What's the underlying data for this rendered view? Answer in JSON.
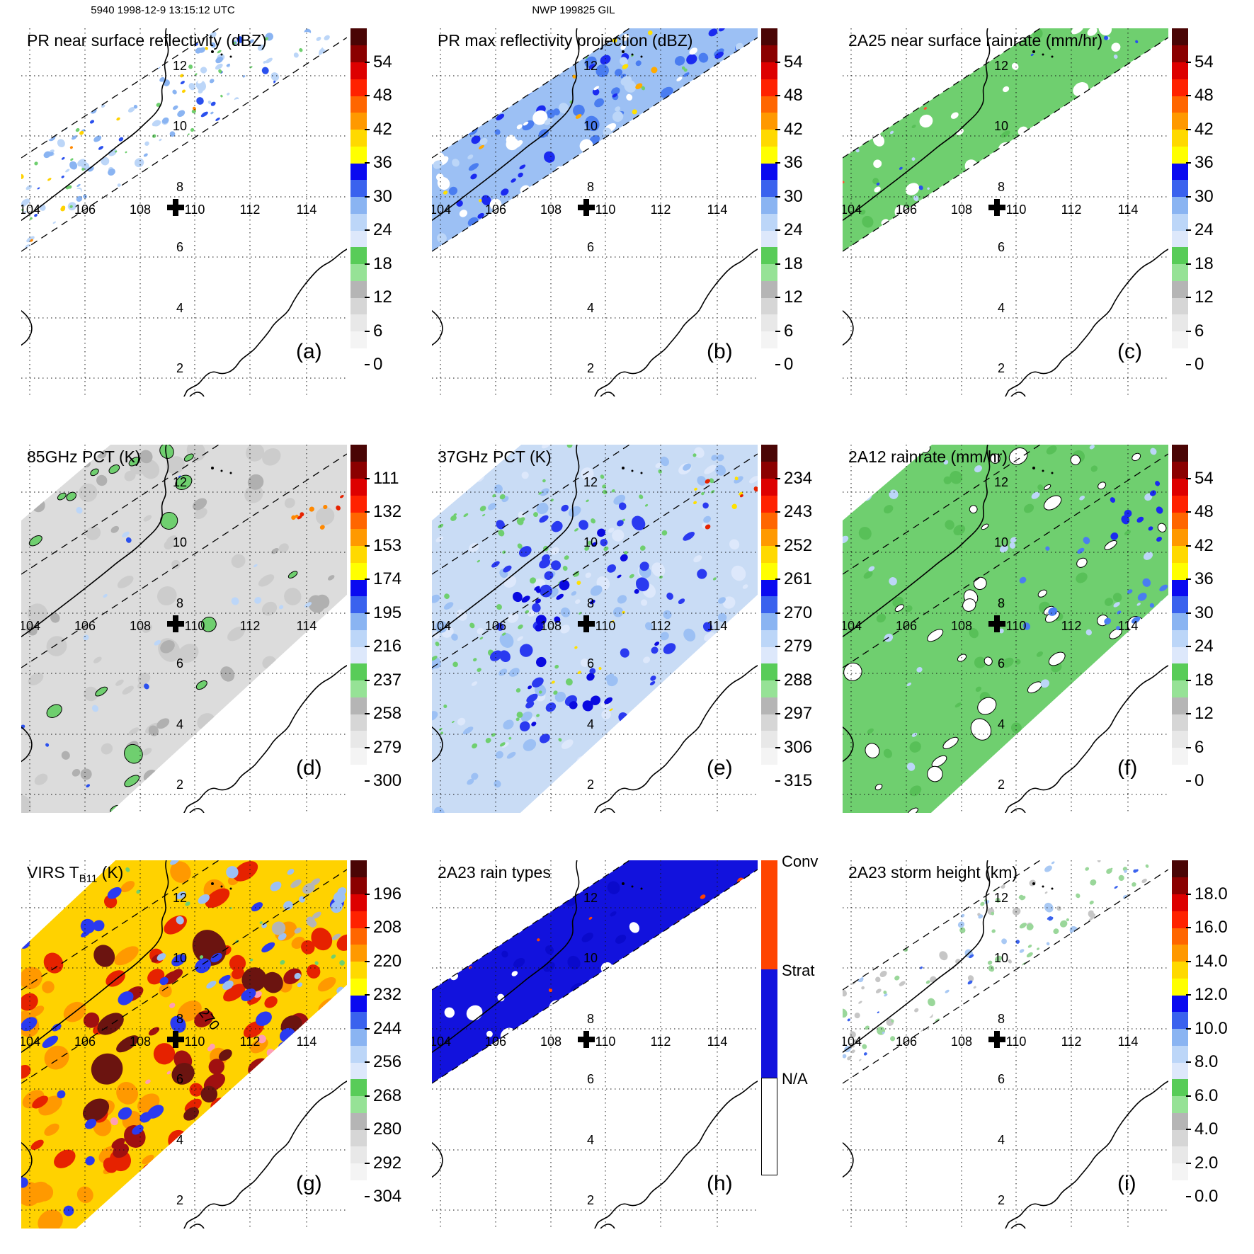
{
  "figure": {
    "header_left": "5940 1998-12-9 13:15:12 UTC",
    "header_right": "NWP 199825 GIL"
  },
  "axes": {
    "lon_ticks": [
      "104",
      "106",
      "108",
      "110",
      "112",
      "114"
    ],
    "lat_ticks": [
      "12",
      "10",
      "8",
      "6",
      "4",
      "2"
    ]
  },
  "marker": {
    "symbol": "plus",
    "lon": 109.4,
    "lat": 7.7
  },
  "colorbar_palette": [
    "#ffffff",
    "#f4f4f4",
    "#e8e8e8",
    "#d6d6d6",
    "#b5b5b5",
    "#96e296",
    "#58cc58",
    "#dde8fb",
    "#bcd6f8",
    "#8ab4f2",
    "#3a62ee",
    "#0a0af0",
    "#ffff00",
    "#ffd900",
    "#ff9900",
    "#ff6600",
    "#ff2200",
    "#dd0000",
    "#8b0000",
    "#4a0505"
  ],
  "raintype_colors": {
    "conv": "#ff4400",
    "strat": "#1212dd",
    "na": "#ffffff"
  },
  "panels": [
    {
      "letter": "(a)",
      "title": "PR near surface reflectivity (dBZ)",
      "swath": "pr",
      "cb": "spectral",
      "seed": 11,
      "cb_ticks": [
        "0",
        "6",
        "12",
        "18",
        "24",
        "30",
        "36",
        "42",
        "48",
        "54"
      ],
      "viz": {
        "base": null,
        "blobs": [
          {
            "c": "#bcd6f8",
            "n": 120,
            "r": [
              2,
              7
            ]
          },
          {
            "c": "#8ab4f2",
            "n": 90,
            "r": [
              2,
              6
            ]
          },
          {
            "c": "#2a50ee",
            "n": 70,
            "r": [
              2,
              6
            ]
          },
          {
            "c": "#ffffff",
            "n": 50,
            "r": [
              4,
              10
            ]
          },
          {
            "c": "#6fcf6f",
            "n": 110,
            "r": [
              1.5,
              3.5
            ]
          },
          {
            "c": "#ffd200",
            "n": 12,
            "r": [
              2,
              4
            ]
          },
          {
            "c": "#ff8800",
            "n": 6,
            "r": [
              2,
              3
            ]
          }
        ]
      }
    },
    {
      "letter": "(b)",
      "title": "PR max reflectivity projection (dBZ)",
      "swath": "pr",
      "cb": "spectral",
      "seed": 23,
      "cb_ticks": [
        "0",
        "6",
        "12",
        "18",
        "24",
        "30",
        "36",
        "42",
        "48",
        "54"
      ],
      "viz": {
        "base": "#9cc0f4",
        "blobs": [
          {
            "c": "#4a7df0",
            "n": 90,
            "r": [
              4,
              10
            ]
          },
          {
            "c": "#1a2af0",
            "n": 70,
            "r": [
              3,
              8
            ]
          },
          {
            "c": "#ffffff",
            "n": 60,
            "r": [
              4,
              11
            ]
          },
          {
            "c": "#bcd6f8",
            "n": 60,
            "r": [
              4,
              9
            ]
          },
          {
            "c": "#ffaa00",
            "n": 22,
            "r": [
              2,
              6
            ]
          },
          {
            "c": "#ffe000",
            "n": 14,
            "r": [
              2,
              5
            ]
          },
          {
            "c": "#6fcf6f",
            "n": 24,
            "r": [
              1.5,
              3
            ]
          }
        ]
      }
    },
    {
      "letter": "(c)",
      "title": "2A25 near surface rainrate (mm/hr)",
      "swath": "pr",
      "cb": "spectral",
      "seed": 37,
      "cb_ticks": [
        "0",
        "6",
        "12",
        "18",
        "24",
        "30",
        "36",
        "42",
        "48",
        "54"
      ],
      "viz": {
        "base": "#6fcf6f",
        "blobs": [
          {
            "c": "#58c058",
            "n": 40,
            "r": [
              3,
              8
            ]
          },
          {
            "c": "#ffffff",
            "n": 60,
            "r": [
              4,
              12
            ]
          },
          {
            "c": "#bcd6f8",
            "n": 30,
            "r": [
              1.5,
              3.5
            ]
          },
          {
            "c": "#2a50ee",
            "n": 10,
            "r": [
              1.5,
              3
            ]
          },
          {
            "c": "#ff5533",
            "n": 4,
            "r": [
              1.5,
              2.5
            ]
          }
        ]
      }
    },
    {
      "letter": "(d)",
      "title": "85GHz PCT (K)",
      "swath": "tmi",
      "cb": "spectral",
      "seed": 41,
      "cb_ticks": [
        "300",
        "279",
        "258",
        "237",
        "216",
        "195",
        "174",
        "153",
        "132",
        "111"
      ],
      "viz": {
        "base": "#dcdcdc",
        "blobs": [
          {
            "c": "#cccccc",
            "n": 60,
            "r": [
              6,
              16
            ]
          },
          {
            "c": "#b0b0b0",
            "n": 35,
            "r": [
              5,
              12
            ]
          },
          {
            "c": "#6fcf6f",
            "n": 24,
            "r": [
              5,
              13
            ],
            "s": 1
          },
          {
            "c": "#bcd6f8",
            "n": 18,
            "r": [
              3,
              6
            ]
          },
          {
            "c": "#2a50ee",
            "n": 9,
            "r": [
              2,
              4
            ]
          },
          {
            "c": "#ff8800",
            "n": 5,
            "r": [
              2,
              4
            ],
            "b": [
              380,
              40,
              460,
              140
            ]
          },
          {
            "c": "#e62200",
            "n": 4,
            "r": [
              2,
              4
            ],
            "b": [
              390,
              50,
              460,
              130
            ]
          }
        ]
      }
    },
    {
      "letter": "(e)",
      "title": "37GHz PCT (K)",
      "swath": "tmi",
      "cb": "spectral",
      "seed": 53,
      "cb_ticks": [
        "315",
        "306",
        "297",
        "288",
        "279",
        "270",
        "261",
        "252",
        "243",
        "234"
      ],
      "viz": {
        "base": "#c9dcf5",
        "blobs": [
          {
            "c": "#dde8fb",
            "n": 70,
            "r": [
              4,
              10
            ]
          },
          {
            "c": "#9cc0f4",
            "n": 70,
            "r": [
              4,
              10
            ]
          },
          {
            "c": "#6fcf6f",
            "n": 55,
            "r": [
              2,
              5
            ],
            "b": [
              0,
              60,
              210,
              430
            ]
          },
          {
            "c": "#6fcf6f",
            "n": 30,
            "r": [
              2,
              4
            ],
            "b": [
              150,
              0,
              400,
              200
            ]
          },
          {
            "c": "#2a3af0",
            "n": 50,
            "r": [
              4,
              10
            ],
            "b": [
              80,
              80,
              390,
              430
            ]
          },
          {
            "c": "#0a0ae0",
            "n": 26,
            "r": [
              3,
              8
            ],
            "b": [
              120,
              120,
              350,
              400
            ]
          },
          {
            "c": "#ffe000",
            "n": 9,
            "r": [
              2,
              3
            ],
            "b": [
              140,
              140,
              340,
              380
            ]
          },
          {
            "c": "#ffe000",
            "n": 5,
            "r": [
              2,
              4
            ],
            "b": [
              370,
              40,
              460,
              130
            ]
          },
          {
            "c": "#e62200",
            "n": 4,
            "r": [
              2,
              4
            ],
            "b": [
              385,
              45,
              460,
              120
            ]
          }
        ]
      }
    },
    {
      "letter": "(f)",
      "title": "2A12 rainrate (mm/hr)",
      "swath": "tmi",
      "cb": "spectral",
      "seed": 67,
      "cb_ticks": [
        "0",
        "6",
        "12",
        "18",
        "24",
        "30",
        "36",
        "42",
        "48",
        "54"
      ],
      "viz": {
        "base": "#6fcf6f",
        "blobs": [
          {
            "c": "#58c058",
            "n": 45,
            "r": [
              4,
              9
            ]
          },
          {
            "c": "#ffffff",
            "n": 45,
            "r": [
              5,
              14
            ],
            "s": 1
          },
          {
            "c": "#bcd6f8",
            "n": 40,
            "r": [
              3,
              7
            ]
          },
          {
            "c": "#4a7df0",
            "n": 16,
            "r": [
              3,
              7
            ],
            "b": [
              250,
              120,
              460,
              300
            ]
          },
          {
            "c": "#1a2af0",
            "n": 10,
            "r": [
              3,
              6
            ],
            "b": [
              380,
              40,
              460,
              140
            ]
          }
        ]
      }
    },
    {
      "letter": "(g)",
      "title_parts": {
        "prefix": "VIRS T",
        "sub": "B11",
        "suffix": " (K)"
      },
      "contour_label": "270",
      "swath": "virs",
      "cb": "spectral",
      "seed": 71,
      "cb_ticks": [
        "304",
        "292",
        "280",
        "268",
        "256",
        "244",
        "232",
        "220",
        "208",
        "196"
      ],
      "viz": {
        "base": "#ffd200",
        "blobs": [
          {
            "c": "#ff9900",
            "n": 55,
            "r": [
              8,
              20
            ]
          },
          {
            "c": "#e62200",
            "n": 50,
            "r": [
              8,
              20
            ]
          },
          {
            "c": "#a01010",
            "n": 24,
            "r": [
              8,
              18
            ],
            "b": [
              60,
              100,
              430,
              420
            ]
          },
          {
            "c": "#6b1410",
            "n": 16,
            "r": [
              10,
              24
            ],
            "b": [
              100,
              120,
              400,
              400
            ]
          },
          {
            "c": "#ff9eb5",
            "n": 10,
            "r": [
              3,
              6
            ],
            "b": [
              130,
              160,
              380,
              380
            ]
          },
          {
            "c": "#2a3af0",
            "n": 40,
            "r": [
              6,
              13
            ]
          },
          {
            "c": "#9cc0f4",
            "n": 20,
            "r": [
              4,
              9
            ],
            "b": [
              150,
              0,
              460,
              190
            ]
          },
          {
            "c": "#b5b5b5",
            "n": 9,
            "r": [
              5,
              10
            ],
            "b": [
              360,
              0,
              460,
              110
            ]
          },
          {
            "c": "#6fcf6f",
            "n": 12,
            "r": [
              2,
              4
            ],
            "b": [
              150,
              0,
              460,
              160
            ]
          }
        ]
      }
    },
    {
      "letter": "(h)",
      "title": "2A23 rain types",
      "swath": "pr",
      "cb": "raintype",
      "seed": 83,
      "cb_ticks": [
        "Conv",
        "Strat",
        "N/A"
      ],
      "viz": {
        "base": "#1212dd",
        "blobs": [
          {
            "c": "#0a0acc",
            "n": 30,
            "r": [
              4,
              10
            ]
          },
          {
            "c": "#ffffff",
            "n": 55,
            "r": [
              4,
              12
            ]
          },
          {
            "c": "#ff4400",
            "n": 26,
            "r": [
              2,
              6
            ]
          }
        ]
      }
    },
    {
      "letter": "(i)",
      "title": "2A23 storm height (km)",
      "swath": "pr",
      "cb": "spectral",
      "seed": 97,
      "cb_ticks": [
        "0.0",
        "2.0",
        "4.0",
        "6.0",
        "8.0",
        "10.0",
        "12.0",
        "14.0",
        "16.0",
        "18.0"
      ],
      "viz": {
        "base": null,
        "blobs": [
          {
            "c": "#c6c6c6",
            "n": 120,
            "r": [
              2,
              6
            ]
          },
          {
            "c": "#9ad79a",
            "n": 120,
            "r": [
              2,
              6
            ]
          },
          {
            "c": "#a9c9f4",
            "n": 90,
            "r": [
              2,
              6
            ]
          },
          {
            "c": "#3a62ee",
            "n": 24,
            "r": [
              1.5,
              4
            ]
          },
          {
            "c": "#ffffff",
            "n": 40,
            "r": [
              3,
              8
            ]
          },
          {
            "c": "#ffaa00",
            "n": 2,
            "r": [
              2,
              3
            ]
          }
        ]
      }
    }
  ],
  "chart_data": [
    {
      "panel": "a",
      "type": "heatmap",
      "title": "PR near surface reflectivity (dBZ)",
      "units": "dBZ",
      "levels": [
        0,
        6,
        12,
        18,
        24,
        30,
        36,
        42,
        48,
        54
      ],
      "lon_range": [
        103.3,
        115.6
      ],
      "lat_range": [
        1.4,
        13.4
      ],
      "swath": "TRMM PR narrow SW-NE diagonal band",
      "pattern": "scattered 20-35 dBZ blue echoes with green speckle and isolated 36-45 dBZ yellow-orange cells"
    },
    {
      "panel": "b",
      "type": "heatmap",
      "title": "PR max reflectivity projection (dBZ)",
      "units": "dBZ",
      "levels": [
        0,
        6,
        12,
        18,
        24,
        30,
        36,
        42,
        48,
        54
      ],
      "lon_range": [
        103.3,
        115.6
      ],
      "lat_range": [
        1.4,
        13.4
      ],
      "swath": "TRMM PR narrow SW-NE diagonal band",
      "pattern": "nearly filled blue 24-35 dBZ band with embedded yellow-orange 36-48 dBZ cores"
    },
    {
      "panel": "c",
      "type": "heatmap",
      "title": "2A25 near surface rainrate (mm/hr)",
      "units": "mm/hr",
      "levels": [
        0,
        6,
        12,
        18,
        24,
        30,
        36,
        42,
        48,
        54
      ],
      "lon_range": [
        103.3,
        115.6
      ],
      "lat_range": [
        1.4,
        13.4
      ],
      "swath": "TRMM PR narrow SW-NE diagonal band",
      "pattern": "mostly light rain (green, <6 mm/hr) with sparse blue 10-25 mm/hr pixels"
    },
    {
      "panel": "d",
      "type": "heatmap",
      "title": "85GHz PCT (K)",
      "units": "K",
      "levels": [
        300,
        279,
        258,
        237,
        216,
        195,
        174,
        153,
        132,
        111
      ],
      "lon_range": [
        103.3,
        115.6
      ],
      "lat_range": [
        1.4,
        13.4
      ],
      "swath": "TMI wide conical-scan band",
      "pattern": "gray 260-290 K background with green 237 K contoured cells, blue 195-216 K cores, orange-red <150 K streak at upper right"
    },
    {
      "panel": "e",
      "type": "heatmap",
      "title": "37GHz PCT (K)",
      "units": "K",
      "levels": [
        315,
        306,
        297,
        288,
        279,
        270,
        261,
        252,
        243,
        234
      ],
      "lon_range": [
        103.3,
        115.6
      ],
      "lat_range": [
        1.4,
        13.4
      ],
      "swath": "TMI wide conical-scan band",
      "pattern": "light-blue 279-288 K field, green 288-297 K at edges, deep-blue 261-270 K blotches, yellow-red <252 K streak at upper right"
    },
    {
      "panel": "f",
      "type": "heatmap",
      "title": "2A12 rainrate (mm/hr)",
      "units": "mm/hr",
      "levels": [
        0,
        6,
        12,
        18,
        24,
        30,
        36,
        42,
        48,
        54
      ],
      "lon_range": [
        103.3,
        115.6
      ],
      "lat_range": [
        1.4,
        13.4
      ],
      "swath": "TMI wide conical-scan band",
      "pattern": "broad green <6 mm/hr area with white gaps and blue 12-30 mm/hr patches toward the east"
    },
    {
      "panel": "g",
      "type": "heatmap",
      "title": "VIRS TB11 (K)",
      "units": "K",
      "levels": [
        304,
        292,
        280,
        268,
        256,
        244,
        232,
        220,
        208,
        196
      ],
      "lon_range": [
        103.3,
        115.6
      ],
      "lat_range": [
        1.4,
        13.4
      ],
      "swath": "VIRS wide scan band",
      "contour_label": 270,
      "pattern": "cold cloud shield: yellow-orange 220-235 K, red 205-215 K, dark-maroon <200 K cores with pink minima, blue 240-260 K gaps"
    },
    {
      "panel": "h",
      "type": "heatmap",
      "title": "2A23 rain types",
      "units": "category",
      "levels": [
        "Conv",
        "Strat",
        "N/A"
      ],
      "lon_range": [
        103.3,
        115.6
      ],
      "lat_range": [
        1.4,
        13.4
      ],
      "swath": "TRMM PR narrow SW-NE diagonal band",
      "pattern": "predominantly stratiform (blue) band with small convective (orange-red) patches"
    },
    {
      "panel": "i",
      "type": "heatmap",
      "title": "2A23 storm height (km)",
      "units": "km",
      "levels": [
        0,
        2,
        4,
        6,
        8,
        10,
        12,
        14,
        16,
        18
      ],
      "lon_range": [
        103.3,
        115.6
      ],
      "lat_range": [
        1.4,
        13.4
      ],
      "swath": "TRMM PR narrow SW-NE diagonal band",
      "pattern": "speckled 2-6 km gray-green echo tops with light-blue 7-9 km and blue 10 km patches"
    }
  ]
}
